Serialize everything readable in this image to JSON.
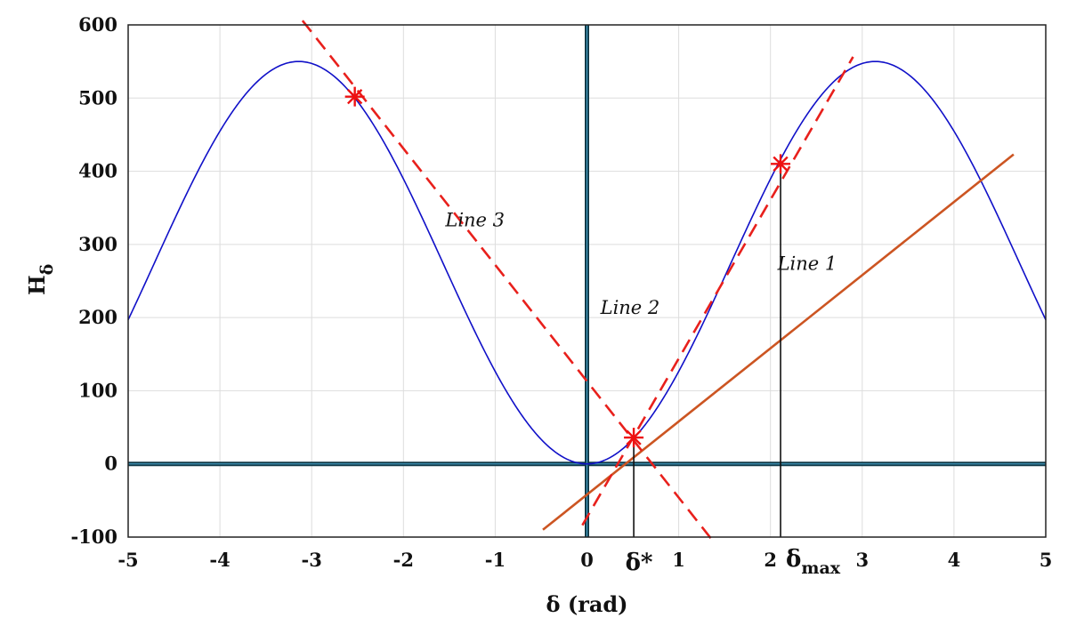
{
  "chart_data": {
    "type": "line",
    "xlabel": "δ (rad)",
    "ylabel": {
      "main": "H",
      "sub": "δ"
    },
    "xlim": [
      -5,
      5
    ],
    "ylim": [
      -100,
      600
    ],
    "xticks": [
      -5,
      -4,
      -3,
      -2,
      -1,
      0,
      1,
      2,
      3,
      4,
      5
    ],
    "yticks": [
      -100,
      0,
      100,
      200,
      300,
      400,
      500,
      600
    ],
    "grid": true,
    "series": [
      {
        "kind": "curve",
        "color": "#1010c8",
        "formula_note": "275*(1-cos(x))",
        "amplitude": 275,
        "style": "solid"
      },
      {
        "kind": "line",
        "color": "#cc5522",
        "style": "solid",
        "slope": 100,
        "intercept": -42,
        "x_range": [
          -0.48,
          4.65
        ]
      },
      {
        "kind": "line",
        "color": "#e8201c",
        "style": "dashed",
        "slope": 217,
        "intercept": -73,
        "x_range": [
          -0.05,
          2.9
        ]
      },
      {
        "kind": "line",
        "color": "#e8201c",
        "style": "dashed",
        "slope": -159,
        "intercept": 113,
        "x_range": [
          -3.1,
          1.35
        ]
      }
    ],
    "markers": [
      {
        "x": -2.53,
        "y": 502
      },
      {
        "x": 0.51,
        "y": 36
      },
      {
        "x": 2.11,
        "y": 410
      }
    ],
    "vertical_drops": [
      {
        "x": 0.51,
        "y_top": 36
      },
      {
        "x": 2.11,
        "y_top": 410
      }
    ],
    "annotations": [
      {
        "text": "Line 3",
        "x": -1.22,
        "y": 325
      },
      {
        "text": "Line 2",
        "x": 0.47,
        "y": 205
      },
      {
        "text": "Line 1",
        "x": 2.4,
        "y": 265
      }
    ],
    "delta_star": {
      "text": "δ*",
      "x": 0.51
    },
    "delta_max": {
      "main": "δ",
      "sub": "max",
      "x": 2.11
    }
  }
}
